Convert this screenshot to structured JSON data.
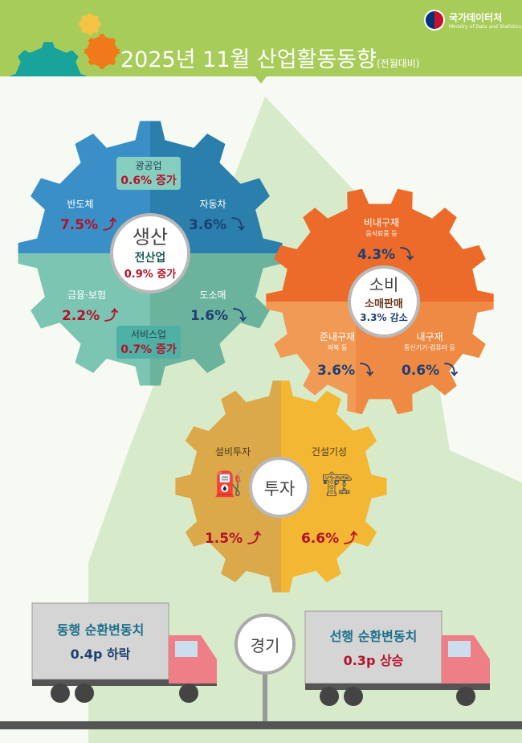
{
  "header": {
    "title": "2025년 11월 산업활동동향",
    "title_note": "(전월대비)",
    "logo_name": "국가데이터처",
    "logo_sub": "Ministry of Data and Statistics"
  },
  "colors": {
    "header_green": "#a8cc5a",
    "production_blue": "#3a8fc7",
    "production_teal": "#7dc5b3",
    "consumption_orange": "#ec6b2b",
    "consumption_light": "#f19a55",
    "investment_gold": "#dba84a",
    "investment_yellow": "#f4b733",
    "increase": "#b3122a",
    "decrease": "#1d3f73"
  },
  "production": {
    "title": "생산",
    "total_label": "전산업",
    "total_value": "0.9% 증가",
    "mining": {
      "label": "광공업",
      "value": "0.6% 증가"
    },
    "services": {
      "label": "서비스업",
      "value": "0.7% 증가"
    },
    "items": [
      {
        "label": "반도체",
        "value": "7.5%",
        "direction": "up"
      },
      {
        "label": "자동차",
        "value": "3.6%",
        "direction": "down"
      },
      {
        "label": "금융·보험",
        "value": "2.2%",
        "direction": "up"
      },
      {
        "label": "도소매",
        "value": "1.6%",
        "direction": "down"
      }
    ]
  },
  "consumption": {
    "title": "소비",
    "total_label": "소매판매",
    "total_value": "3.3% 감소",
    "items": [
      {
        "label": "비내구재",
        "sub": "음식료품 등",
        "value": "4.3%",
        "direction": "down"
      },
      {
        "label": "준내구재",
        "sub": "의복 등",
        "value": "3.6%",
        "direction": "down"
      },
      {
        "label": "내구재",
        "sub": "통신기기·컴퓨터 등",
        "value": "0.6%",
        "direction": "down"
      }
    ]
  },
  "investment": {
    "title": "투자",
    "items": [
      {
        "label": "설비투자",
        "value": "1.5%",
        "direction": "up"
      },
      {
        "label": "건설기성",
        "value": "6.6%",
        "direction": "up"
      }
    ]
  },
  "economy": {
    "title": "경기",
    "coincident": {
      "label": "동행 순환변동치",
      "value": "0.4p 하락"
    },
    "leading": {
      "label": "선행 순환변동치",
      "value": "0.3p 상승"
    }
  }
}
